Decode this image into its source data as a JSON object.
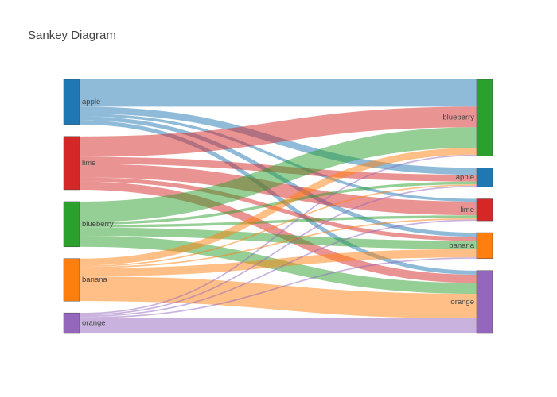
{
  "chart_data": {
    "type": "sankey",
    "title": "Sankey Diagram",
    "colors": {
      "apple": "#1f77b4",
      "lime": "#d62728",
      "blueberry": "#2ca02c",
      "banana": "#ff7f0e",
      "orange": "#9467bd"
    },
    "link_opacity": 0.5,
    "source_nodes": [
      "apple",
      "lime",
      "blueberry",
      "banana",
      "orange"
    ],
    "target_nodes": [
      "blueberry",
      "apple",
      "lime",
      "banana",
      "orange"
    ],
    "links": [
      {
        "source": "apple",
        "target": "blueberry",
        "value": 20
      },
      {
        "source": "apple",
        "target": "apple",
        "value": 5
      },
      {
        "source": "apple",
        "target": "lime",
        "value": 2
      },
      {
        "source": "apple",
        "target": "banana",
        "value": 3
      },
      {
        "source": "apple",
        "target": "orange",
        "value": 3
      },
      {
        "source": "lime",
        "target": "blueberry",
        "value": 15
      },
      {
        "source": "lime",
        "target": "apple",
        "value": 5
      },
      {
        "source": "lime",
        "target": "lime",
        "value": 10
      },
      {
        "source": "lime",
        "target": "banana",
        "value": 3
      },
      {
        "source": "lime",
        "target": "orange",
        "value": 6
      },
      {
        "source": "blueberry",
        "target": "blueberry",
        "value": 15
      },
      {
        "source": "blueberry",
        "target": "apple",
        "value": 2
      },
      {
        "source": "blueberry",
        "target": "lime",
        "value": 2
      },
      {
        "source": "blueberry",
        "target": "banana",
        "value": 6
      },
      {
        "source": "blueberry",
        "target": "orange",
        "value": 8
      },
      {
        "source": "banana",
        "target": "blueberry",
        "value": 5
      },
      {
        "source": "banana",
        "target": "apple",
        "value": 1
      },
      {
        "source": "banana",
        "target": "lime",
        "value": 1
      },
      {
        "source": "banana",
        "target": "banana",
        "value": 6
      },
      {
        "source": "banana",
        "target": "orange",
        "value": 18
      },
      {
        "source": "orange",
        "target": "blueberry",
        "value": 1
      },
      {
        "source": "orange",
        "target": "apple",
        "value": 1
      },
      {
        "source": "orange",
        "target": "lime",
        "value": 1
      },
      {
        "source": "orange",
        "target": "banana",
        "value": 1
      },
      {
        "source": "orange",
        "target": "orange",
        "value": 11
      }
    ]
  }
}
